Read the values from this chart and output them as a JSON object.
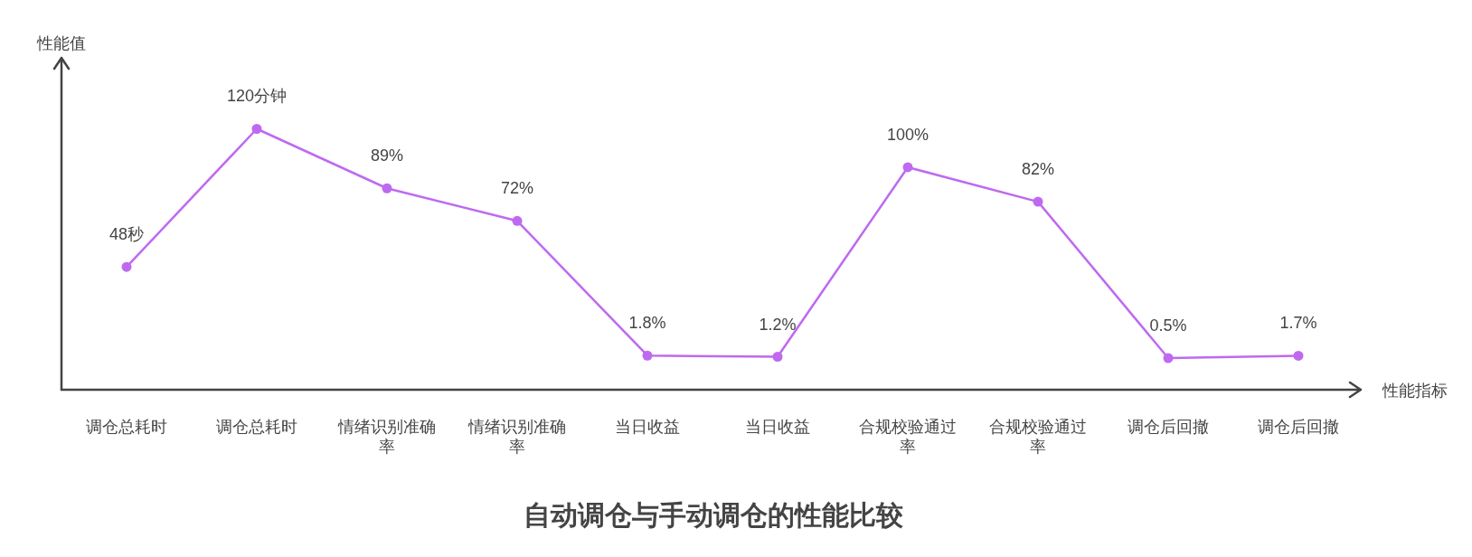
{
  "chart_data": {
    "type": "line",
    "title": "自动调仓与手动调仓的性能比较",
    "xlabel": "性能指标",
    "ylabel": "性能值",
    "ylim": [
      -16,
      157
    ],
    "marker": "circle",
    "color": "#bf69f0",
    "categories": [
      "调仓总耗时",
      "调仓总耗时",
      "情绪识别准确率",
      "情绪识别准确率",
      "当日收益",
      "当日收益",
      "合规校验通过率",
      "合规校验通过率",
      "调仓后回撤",
      "调仓后回撤"
    ],
    "values": [
      48,
      120,
      89,
      72,
      1.8,
      1.2,
      100,
      82,
      0.5,
      1.7
    ],
    "value_labels": [
      "48秒",
      "120分钟",
      "89%",
      "72%",
      "1.8%",
      "1.2%",
      "100%",
      "82%",
      "0.5%",
      "1.7%"
    ]
  }
}
